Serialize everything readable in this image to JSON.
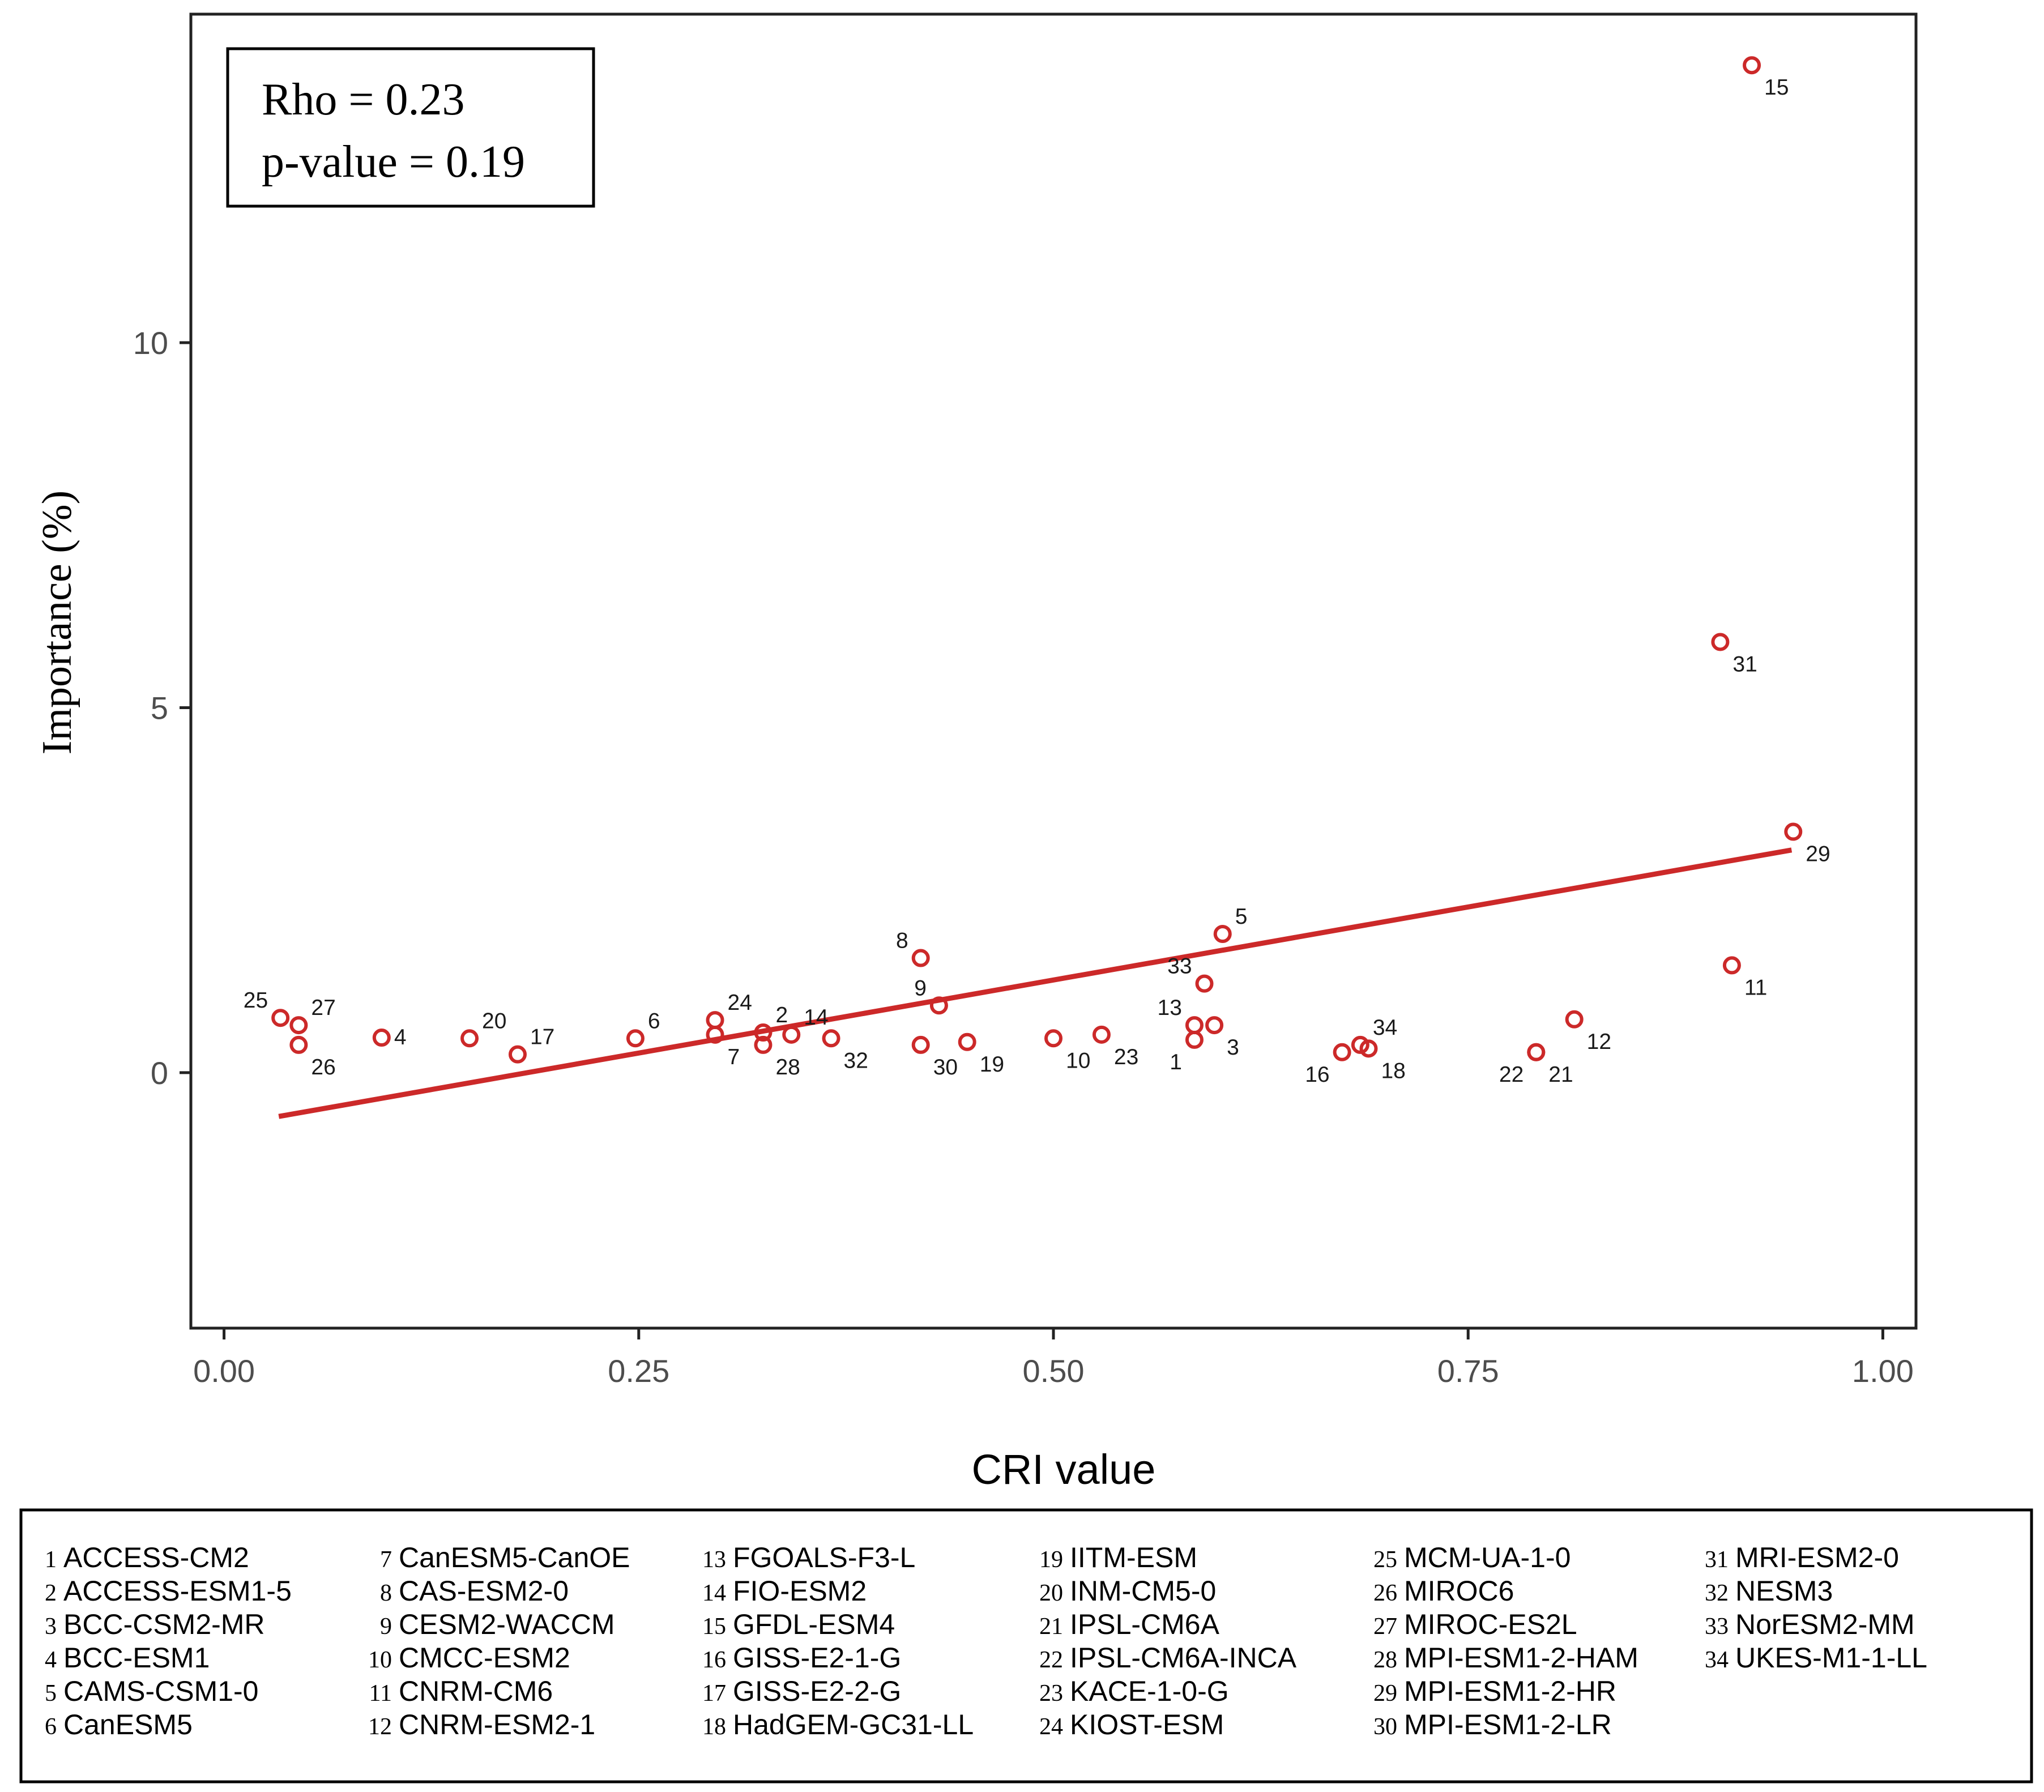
{
  "chart_data": {
    "type": "scatter",
    "xlabel": "CRI value",
    "ylabel": "Importance (%)",
    "xlim": [
      -0.02,
      1.02
    ],
    "ylim": [
      -3.5,
      14.5
    ],
    "x_ticks": [
      0.0,
      0.25,
      0.5,
      0.75,
      1.0
    ],
    "x_tick_labels": [
      "0.00",
      "0.25",
      "0.50",
      "0.75",
      "1.00"
    ],
    "y_ticks": [
      0,
      5,
      10
    ],
    "y_tick_labels": [
      "0",
      "5",
      "10"
    ],
    "grid": false,
    "point_color": "#cc2929",
    "line_color": "#cc2929",
    "stats": {
      "rho": "Rho = 0.23",
      "p_value": "p-value = 0.19"
    },
    "fit_line": {
      "x": [
        0.033,
        0.945
      ],
      "y": [
        -0.6,
        3.05
      ]
    },
    "points": [
      {
        "id": 1,
        "label": "1",
        "x": 0.585,
        "y": 0.45,
        "pos": "bl"
      },
      {
        "id": 2,
        "label": "2",
        "x": 0.325,
        "y": 0.55,
        "pos": "tr"
      },
      {
        "id": 3,
        "label": "3",
        "x": 0.597,
        "y": 0.65,
        "pos": "br"
      },
      {
        "id": 4,
        "label": "4",
        "x": 0.095,
        "y": 0.48,
        "pos": "r"
      },
      {
        "id": 5,
        "label": "5",
        "x": 0.602,
        "y": 1.9,
        "pos": "tr"
      },
      {
        "id": 6,
        "label": "6",
        "x": 0.248,
        "y": 0.47,
        "pos": "tr"
      },
      {
        "id": 7,
        "label": "7",
        "x": 0.296,
        "y": 0.52,
        "pos": "br"
      },
      {
        "id": 8,
        "label": "8",
        "x": 0.42,
        "y": 1.57,
        "pos": "tl"
      },
      {
        "id": 9,
        "label": "9",
        "x": 0.431,
        "y": 0.92,
        "pos": "tl"
      },
      {
        "id": 10,
        "label": "10",
        "x": 0.5,
        "y": 0.47,
        "pos": "br"
      },
      {
        "id": 11,
        "label": "11",
        "x": 0.909,
        "y": 1.47,
        "pos": "br"
      },
      {
        "id": 12,
        "label": "12",
        "x": 0.814,
        "y": 0.73,
        "pos": "br"
      },
      {
        "id": 13,
        "label": "13",
        "x": 0.585,
        "y": 0.65,
        "pos": "tl"
      },
      {
        "id": 14,
        "label": "14",
        "x": 0.342,
        "y": 0.52,
        "pos": "tr"
      },
      {
        "id": 15,
        "label": "15",
        "x": 0.921,
        "y": 13.8,
        "pos": "br"
      },
      {
        "id": 16,
        "label": "16",
        "x": 0.674,
        "y": 0.28,
        "pos": "bl"
      },
      {
        "id": 17,
        "label": "17",
        "x": 0.177,
        "y": 0.25,
        "pos": "tr"
      },
      {
        "id": 18,
        "label": "18",
        "x": 0.69,
        "y": 0.33,
        "pos": "br"
      },
      {
        "id": 19,
        "label": "19",
        "x": 0.448,
        "y": 0.42,
        "pos": "br"
      },
      {
        "id": 20,
        "label": "20",
        "x": 0.148,
        "y": 0.47,
        "pos": "tr"
      },
      {
        "id": 21,
        "label": "21",
        "x": 0.791,
        "y": 0.28,
        "pos": "br"
      },
      {
        "id": 22,
        "label": "22",
        "x": 0.791,
        "y": 0.28,
        "pos": "bl"
      },
      {
        "id": 23,
        "label": "23",
        "x": 0.529,
        "y": 0.52,
        "pos": "br"
      },
      {
        "id": 24,
        "label": "24",
        "x": 0.296,
        "y": 0.72,
        "pos": "tr"
      },
      {
        "id": 25,
        "label": "25",
        "x": 0.034,
        "y": 0.75,
        "pos": "tl"
      },
      {
        "id": 26,
        "label": "26",
        "x": 0.045,
        "y": 0.38,
        "pos": "br"
      },
      {
        "id": 27,
        "label": "27",
        "x": 0.045,
        "y": 0.65,
        "pos": "tr"
      },
      {
        "id": 28,
        "label": "28",
        "x": 0.325,
        "y": 0.38,
        "pos": "br"
      },
      {
        "id": 29,
        "label": "29",
        "x": 0.946,
        "y": 3.3,
        "pos": "br"
      },
      {
        "id": 30,
        "label": "30",
        "x": 0.42,
        "y": 0.38,
        "pos": "br"
      },
      {
        "id": 31,
        "label": "31",
        "x": 0.902,
        "y": 5.9,
        "pos": "br"
      },
      {
        "id": 32,
        "label": "32",
        "x": 0.366,
        "y": 0.47,
        "pos": "br"
      },
      {
        "id": 33,
        "label": "33",
        "x": 0.591,
        "y": 1.22,
        "pos": "tl"
      },
      {
        "id": 34,
        "label": "34",
        "x": 0.685,
        "y": 0.38,
        "pos": "tr"
      }
    ],
    "legend_columns": [
      [
        {
          "num": "1",
          "name": "ACCESS-CM2"
        },
        {
          "num": "2",
          "name": "ACCESS-ESM1-5"
        },
        {
          "num": "3",
          "name": "BCC-CSM2-MR"
        },
        {
          "num": "4",
          "name": "BCC-ESM1"
        },
        {
          "num": "5",
          "name": "CAMS-CSM1-0"
        },
        {
          "num": "6",
          "name": "CanESM5"
        }
      ],
      [
        {
          "num": "7",
          "name": "CanESM5-CanOE"
        },
        {
          "num": "8",
          "name": "CAS-ESM2-0"
        },
        {
          "num": "9",
          "name": "CESM2-WACCM"
        },
        {
          "num": "10",
          "name": "CMCC-ESM2"
        },
        {
          "num": "11",
          "name": "CNRM-CM6"
        },
        {
          "num": "12",
          "name": "CNRM-ESM2-1"
        }
      ],
      [
        {
          "num": "13",
          "name": "FGOALS-F3-L"
        },
        {
          "num": "14",
          "name": "FIO-ESM2"
        },
        {
          "num": "15",
          "name": "GFDL-ESM4"
        },
        {
          "num": "16",
          "name": "GISS-E2-1-G"
        },
        {
          "num": "17",
          "name": "GISS-E2-2-G"
        },
        {
          "num": "18",
          "name": "HadGEM-GC31-LL"
        }
      ],
      [
        {
          "num": "19",
          "name": "IITM-ESM"
        },
        {
          "num": "20",
          "name": "INM-CM5-0"
        },
        {
          "num": "21",
          "name": "IPSL-CM6A"
        },
        {
          "num": "22",
          "name": "IPSL-CM6A-INCA"
        },
        {
          "num": "23",
          "name": "KACE-1-0-G"
        },
        {
          "num": "24",
          "name": "KIOST-ESM"
        }
      ],
      [
        {
          "num": "25",
          "name": "MCM-UA-1-0"
        },
        {
          "num": "26",
          "name": "MIROC6"
        },
        {
          "num": "27",
          "name": "MIROC-ES2L"
        },
        {
          "num": "28",
          "name": "MPI-ESM1-2-HAM"
        },
        {
          "num": "29",
          "name": "MPI-ESM1-2-HR"
        },
        {
          "num": "30",
          "name": "MPI-ESM1-2-LR"
        }
      ],
      [
        {
          "num": "31",
          "name": "MRI-ESM2-0"
        },
        {
          "num": "32",
          "name": "NESM3"
        },
        {
          "num": "33",
          "name": "NorESM2-MM"
        },
        {
          "num": "34",
          "name": "UKES-M1-1-LL"
        }
      ]
    ]
  }
}
